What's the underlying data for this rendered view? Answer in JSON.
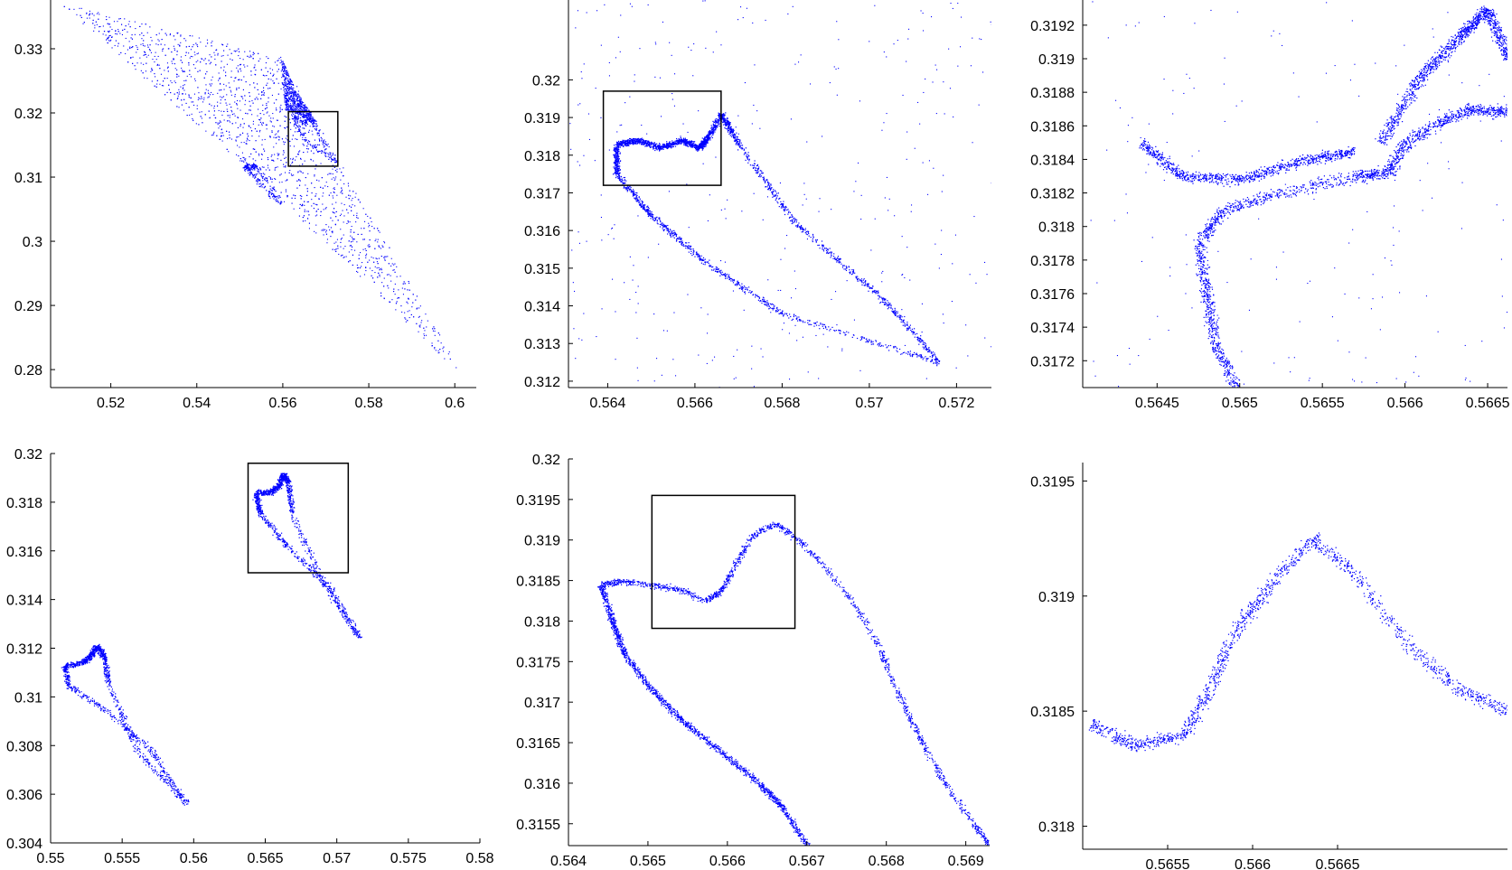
{
  "figure": {
    "point_color": "#0000ff",
    "frame_color": "#000000",
    "background": "#ffffff"
  },
  "chart_data": [
    {
      "id": "top-left",
      "type": "scatter",
      "title": "",
      "xlabel": "",
      "ylabel": "",
      "xlim": [
        0.506,
        0.605
      ],
      "ylim": [
        0.2772,
        0.3376
      ],
      "xticks": [
        0.52,
        0.54,
        0.56,
        0.58,
        0.6
      ],
      "xtick_labels": [
        "0.52",
        "0.54",
        "0.56",
        "0.58",
        "0.6"
      ],
      "yticks": [
        0.28,
        0.29,
        0.3,
        0.31,
        0.32,
        0.33
      ],
      "ytick_labels": [
        "0.28",
        "0.29",
        "0.3",
        "0.31",
        "0.32",
        "0.33"
      ],
      "zoom_box": {
        "x": [
          0.5613,
          0.5728
        ],
        "y": [
          0.3117,
          0.3202
        ]
      },
      "point_density": 3200,
      "regions": [
        {
          "kind": "polygon",
          "weight": 10,
          "pts": [
            [
              0.508,
              0.3372
            ],
            [
              0.5595,
              0.3288
            ],
            [
              0.568,
              0.3185
            ],
            [
              0.6025,
              0.2785
            ],
            [
              0.553,
              0.3105
            ]
          ]
        },
        {
          "kind": "polygon",
          "weight": 3,
          "pts": [
            [
              0.5595,
              0.3288
            ],
            [
              0.563,
              0.3235
            ],
            [
              0.568,
              0.3185
            ],
            [
              0.5605,
              0.3205
            ]
          ]
        },
        {
          "kind": "loop",
          "weight": 1,
          "pts": [
            [
              0.5625,
              0.3195
            ],
            [
              0.5648,
              0.3185
            ],
            [
              0.5665,
              0.319
            ],
            [
              0.5722,
              0.3123
            ],
            [
              0.565,
              0.316
            ],
            [
              0.5625,
              0.3195
            ]
          ]
        },
        {
          "kind": "loop",
          "weight": 1,
          "pts": [
            [
              0.551,
              0.3118
            ],
            [
              0.5528,
              0.3115
            ],
            [
              0.5535,
              0.312
            ],
            [
              0.5595,
              0.306
            ],
            [
              0.554,
              0.3095
            ],
            [
              0.551,
              0.3118
            ]
          ]
        }
      ]
    },
    {
      "id": "top-middle",
      "type": "scatter",
      "title": "",
      "xlabel": "",
      "ylabel": "",
      "xlim": [
        0.5631,
        0.5728
      ],
      "ylim": [
        0.31183,
        0.32212
      ],
      "xticks": [
        0.564,
        0.566,
        0.568,
        0.57,
        0.572
      ],
      "xtick_labels": [
        "0.564",
        "0.566",
        "0.568",
        "0.57",
        "0.572"
      ],
      "yticks": [
        0.312,
        0.313,
        0.314,
        0.315,
        0.316,
        0.317,
        0.318,
        0.319,
        0.32
      ],
      "ytick_labels": [
        "0.312",
        "0.313",
        "0.314",
        "0.315",
        "0.316",
        "0.317",
        "0.318",
        "0.319",
        "0.32"
      ],
      "zoom_box": {
        "x": [
          0.5639,
          0.5666
        ],
        "y": [
          0.3172,
          0.3197
        ]
      },
      "point_density": 3400,
      "regions": [
        {
          "kind": "loop",
          "weight": 9,
          "pts": [
            [
              0.5642,
              0.3183
            ],
            [
              0.5647,
              0.3184
            ],
            [
              0.5652,
              0.3182
            ],
            [
              0.5657,
              0.3184
            ],
            [
              0.5661,
              0.3182
            ],
            [
              0.5663,
              0.3185
            ],
            [
              0.5666,
              0.3191
            ],
            [
              0.567,
              0.3183
            ],
            [
              0.5683,
              0.3162
            ],
            [
              0.5703,
              0.3142
            ],
            [
              0.5716,
              0.3125
            ],
            [
              0.568,
              0.3138
            ],
            [
              0.5662,
              0.3152
            ],
            [
              0.565,
              0.3164
            ],
            [
              0.5642,
              0.3175
            ],
            [
              0.5642,
              0.3183
            ]
          ]
        },
        {
          "kind": "noise",
          "weight": 1
        }
      ]
    },
    {
      "id": "top-right",
      "type": "scatter",
      "title": "",
      "xlabel": "",
      "ylabel": "",
      "xlim": [
        0.56405,
        0.56662
      ],
      "ylim": [
        0.31704,
        0.31935
      ],
      "xticks": [
        0.5645,
        0.565,
        0.5655,
        0.566,
        0.5665
      ],
      "xtick_labels": [
        "0.5645",
        "0.565",
        "0.5655",
        "0.566",
        "0.5665"
      ],
      "yticks": [
        0.3172,
        0.3174,
        0.3176,
        0.3178,
        0.318,
        0.3182,
        0.3184,
        0.3186,
        0.3188,
        0.319,
        0.3192
      ],
      "ytick_labels": [
        "0.3172",
        "0.3174",
        "0.3176",
        "0.3178",
        "0.318",
        "0.3182",
        "0.3184",
        "0.3186",
        "0.3188",
        "0.319",
        "0.3192"
      ],
      "zoom_box": null,
      "point_density": 4200,
      "regions": [
        {
          "kind": "band",
          "weight": 10,
          "width": 5.5e-05,
          "pts": [
            [
              0.56498,
              0.31704
            ],
            [
              0.56485,
              0.3173
            ],
            [
              0.5648,
              0.3176
            ],
            [
              0.56475,
              0.3179
            ],
            [
              0.5649,
              0.3181
            ],
            [
              0.56525,
              0.3182
            ],
            [
              0.5657,
              0.3183
            ],
            [
              0.5659,
              0.31832
            ],
            [
              0.566,
              0.3185
            ],
            [
              0.5662,
              0.31862
            ],
            [
              0.5664,
              0.3187
            ],
            [
              0.56662,
              0.31868
            ]
          ]
        },
        {
          "kind": "band",
          "weight": 6,
          "width": 5.5e-05,
          "pts": [
            [
              0.56585,
              0.3185
            ],
            [
              0.5661,
              0.3189
            ],
            [
              0.56635,
              0.31915
            ],
            [
              0.5665,
              0.3193
            ],
            [
              0.56662,
              0.319
            ]
          ]
        },
        {
          "kind": "band",
          "weight": 5,
          "width": 5e-05,
          "pts": [
            [
              0.5644,
              0.3185
            ],
            [
              0.56465,
              0.3183
            ],
            [
              0.565,
              0.31828
            ],
            [
              0.5654,
              0.3184
            ],
            [
              0.5657,
              0.31845
            ]
          ]
        },
        {
          "kind": "noise",
          "weight": 1
        }
      ]
    },
    {
      "id": "bottom-left",
      "type": "scatter",
      "title": "",
      "xlabel": "",
      "ylabel": "",
      "xlim": [
        0.55,
        0.58
      ],
      "ylim": [
        0.304,
        0.32
      ],
      "xticks": [
        0.55,
        0.555,
        0.56,
        0.565,
        0.57,
        0.575,
        0.58
      ],
      "xtick_labels": [
        "0.55",
        "0.555",
        "0.56",
        "0.565",
        "0.57",
        "0.575",
        "0.58"
      ],
      "yticks": [
        0.304,
        0.306,
        0.308,
        0.31,
        0.312,
        0.314,
        0.316,
        0.318,
        0.32
      ],
      "ytick_labels": [
        "0.304",
        "0.306",
        "0.308",
        "0.31",
        "0.312",
        "0.314",
        "0.316",
        "0.318",
        "0.32"
      ],
      "zoom_box": {
        "x": [
          0.5638,
          0.5708
        ],
        "y": [
          0.3151,
          0.3196
        ]
      },
      "point_density": 2600,
      "regions": [
        {
          "kind": "loop",
          "weight": 1,
          "pts": [
            [
              0.5643,
              0.3184
            ],
            [
              0.5653,
              0.3184
            ],
            [
              0.566,
              0.3187
            ],
            [
              0.5662,
              0.3192
            ],
            [
              0.5666,
              0.3188
            ],
            [
              0.5668,
              0.3176
            ],
            [
              0.569,
              0.3147
            ],
            [
              0.5716,
              0.3124
            ],
            [
              0.5695,
              0.3145
            ],
            [
              0.5665,
              0.3162
            ],
            [
              0.5646,
              0.3176
            ],
            [
              0.5643,
              0.3184
            ]
          ]
        },
        {
          "kind": "loop",
          "weight": 1,
          "pts": [
            [
              0.551,
              0.3113
            ],
            [
              0.5522,
              0.3114
            ],
            [
              0.5528,
              0.3117
            ],
            [
              0.5532,
              0.3121
            ],
            [
              0.5537,
              0.3117
            ],
            [
              0.554,
              0.3106
            ],
            [
              0.556,
              0.3078
            ],
            [
              0.5595,
              0.3056
            ],
            [
              0.557,
              0.3078
            ],
            [
              0.554,
              0.3094
            ],
            [
              0.5512,
              0.3105
            ],
            [
              0.551,
              0.3113
            ]
          ]
        }
      ]
    },
    {
      "id": "bottom-middle",
      "type": "scatter",
      "title": "",
      "xlabel": "",
      "ylabel": "",
      "xlim": [
        0.564,
        0.5693
      ],
      "ylim": [
        0.31523,
        0.32
      ],
      "xticks": [
        0.564,
        0.565,
        0.566,
        0.567,
        0.568,
        0.569
      ],
      "xtick_labels": [
        "0.564",
        "0.565",
        "0.566",
        "0.567",
        "0.568",
        "0.569"
      ],
      "yticks": [
        0.3155,
        0.316,
        0.3165,
        0.317,
        0.3175,
        0.318,
        0.3185,
        0.319,
        0.3195,
        0.32
      ],
      "ytick_labels": [
        "0.3155",
        "0.316",
        "0.3165",
        "0.317",
        "0.3175",
        "0.318",
        "0.3185",
        "0.319",
        "0.3195",
        "0.32"
      ],
      "zoom_box": {
        "x": [
          0.56505,
          0.56685
        ],
        "y": [
          0.31791,
          0.31955
        ]
      },
      "point_density": 3000,
      "regions": [
        {
          "kind": "band",
          "weight": 10,
          "width": 6e-05,
          "pts": [
            [
              0.5644,
              0.31845
            ],
            [
              0.56455,
              0.318
            ],
            [
              0.5647,
              0.3176
            ],
            [
              0.565,
              0.3172
            ],
            [
              0.5654,
              0.3168
            ],
            [
              0.5659,
              0.3164
            ],
            [
              0.5664,
              0.316
            ],
            [
              0.5667,
              0.3157
            ],
            [
              0.567,
              0.31523
            ]
          ]
        },
        {
          "kind": "band",
          "weight": 10,
          "width": 6e-05,
          "pts": [
            [
              0.5644,
              0.31845
            ],
            [
              0.56465,
              0.3185
            ],
            [
              0.565,
              0.31845
            ],
            [
              0.5654,
              0.3184
            ],
            [
              0.5657,
              0.31825
            ],
            [
              0.5659,
              0.31835
            ],
            [
              0.5661,
              0.3187
            ],
            [
              0.5663,
              0.31905
            ],
            [
              0.5666,
              0.3192
            ],
            [
              0.5669,
              0.319
            ],
            [
              0.5672,
              0.3187
            ],
            [
              0.5676,
              0.3182
            ],
            [
              0.5679,
              0.3177
            ],
            [
              0.5681,
              0.3172
            ],
            [
              0.5683,
              0.3168
            ],
            [
              0.5685,
              0.3164
            ],
            [
              0.5688,
              0.3159
            ],
            [
              0.5691,
              0.3155
            ],
            [
              0.5693,
              0.31523
            ]
          ]
        }
      ]
    },
    {
      "id": "bottom-right",
      "type": "scatter",
      "title": "",
      "xlabel": "",
      "ylabel": "",
      "xlim": [
        0.565,
        0.5675
      ],
      "ylim": [
        0.3179,
        0.31958
      ],
      "xticks": [
        0.5655,
        0.566,
        0.5665
      ],
      "xtick_labels": [
        "0.5655",
        "0.566",
        "0.5665"
      ],
      "yticks": [
        0.318,
        0.3185,
        0.319,
        0.3195
      ],
      "ytick_labels": [
        "0.318",
        "0.3185",
        "0.319",
        "0.3195"
      ],
      "zoom_box": null,
      "point_density": 1500,
      "regions": [
        {
          "kind": "band",
          "weight": 10,
          "width": 6e-05,
          "pts": [
            [
              0.56505,
              0.31845
            ],
            [
              0.5653,
              0.31835
            ],
            [
              0.5656,
              0.3184
            ],
            [
              0.56575,
              0.3186
            ],
            [
              0.5659,
              0.31885
            ],
            [
              0.5661,
              0.31905
            ],
            [
              0.56635,
              0.31925
            ],
            [
              0.5666,
              0.3191
            ],
            [
              0.5669,
              0.3188
            ],
            [
              0.5672,
              0.3186
            ],
            [
              0.5675,
              0.3185
            ]
          ]
        }
      ]
    }
  ]
}
